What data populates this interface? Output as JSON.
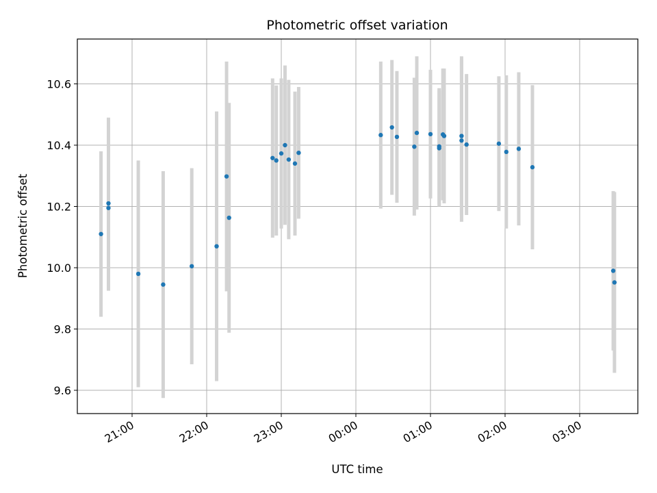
{
  "chart_data": {
    "type": "scatter",
    "title": "Photometric offset variation",
    "xlabel": "UTC time",
    "ylabel": "Photometric offset",
    "x_ticks": [
      "21:00",
      "22:00",
      "23:00",
      "00:00",
      "01:00",
      "02:00",
      "03:00"
    ],
    "y_ticks": [
      "9.6",
      "9.8",
      "10.0",
      "10.2",
      "10.4",
      "10.6"
    ],
    "grid": true,
    "colors": {
      "point": "#1f77b4",
      "errorbar": "#d3d3d3",
      "grid": "#b0b0b0"
    },
    "points": [
      {
        "t": "20:35",
        "y": 10.11,
        "err": 0.27
      },
      {
        "t": "20:41",
        "y": 10.21,
        "err": 0.28
      },
      {
        "t": "20:41",
        "y": 10.195,
        "err": 0.27
      },
      {
        "t": "21:05",
        "y": 9.98,
        "err": 0.37
      },
      {
        "t": "21:25",
        "y": 9.945,
        "err": 0.37
      },
      {
        "t": "21:48",
        "y": 10.005,
        "err": 0.32
      },
      {
        "t": "22:08",
        "y": 10.07,
        "err": 0.44
      },
      {
        "t": "22:16",
        "y": 10.298,
        "err": 0.375
      },
      {
        "t": "22:18",
        "y": 10.163,
        "err": 0.375
      },
      {
        "t": "22:53",
        "y": 10.358,
        "err": 0.26
      },
      {
        "t": "22:56",
        "y": 10.35,
        "err": 0.245
      },
      {
        "t": "23:00",
        "y": 10.373,
        "err": 0.245
      },
      {
        "t": "23:03",
        "y": 10.4,
        "err": 0.26
      },
      {
        "t": "23:06",
        "y": 10.353,
        "err": 0.26
      },
      {
        "t": "23:11",
        "y": 10.34,
        "err": 0.235
      },
      {
        "t": "23:14",
        "y": 10.375,
        "err": 0.215
      },
      {
        "t": "00:20",
        "y": 10.433,
        "err": 0.24
      },
      {
        "t": "00:29",
        "y": 10.458,
        "err": 0.22
      },
      {
        "t": "00:33",
        "y": 10.427,
        "err": 0.215
      },
      {
        "t": "00:47",
        "y": 10.395,
        "err": 0.225
      },
      {
        "t": "00:49",
        "y": 10.44,
        "err": 0.25
      },
      {
        "t": "01:00",
        "y": 10.436,
        "err": 0.21
      },
      {
        "t": "01:07",
        "y": 10.39,
        "err": 0.19
      },
      {
        "t": "01:07",
        "y": 10.396,
        "err": 0.19
      },
      {
        "t": "01:10",
        "y": 10.435,
        "err": 0.215
      },
      {
        "t": "01:11",
        "y": 10.43,
        "err": 0.22
      },
      {
        "t": "01:25",
        "y": 10.43,
        "err": 0.26
      },
      {
        "t": "01:25",
        "y": 10.415,
        "err": 0.265
      },
      {
        "t": "01:29",
        "y": 10.402,
        "err": 0.23
      },
      {
        "t": "01:55",
        "y": 10.405,
        "err": 0.22
      },
      {
        "t": "02:01",
        "y": 10.378,
        "err": 0.25
      },
      {
        "t": "02:11",
        "y": 10.388,
        "err": 0.25
      },
      {
        "t": "02:22",
        "y": 10.328,
        "err": 0.268
      },
      {
        "t": "03:27",
        "y": 9.99,
        "err": 0.26
      },
      {
        "t": "03:28",
        "y": 9.952,
        "err": 0.295
      }
    ]
  }
}
